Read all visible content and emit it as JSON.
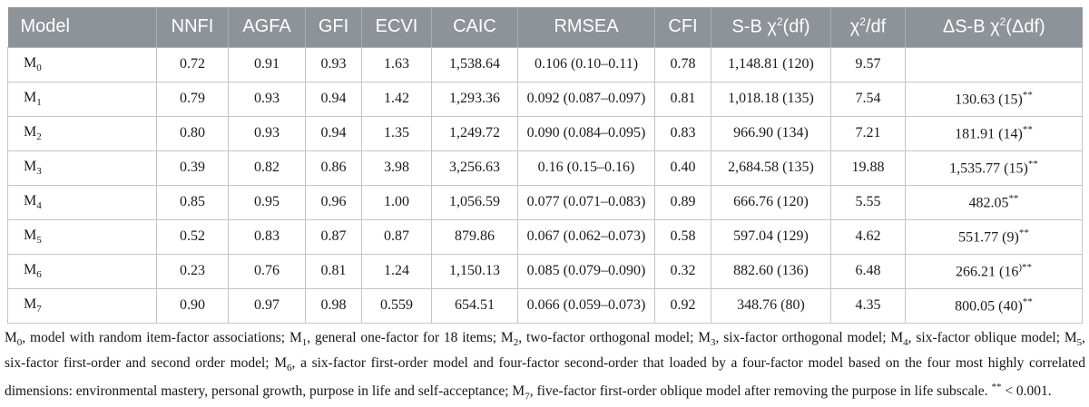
{
  "table": {
    "columns": [
      "Model",
      "NNFI",
      "AGFA",
      "GFI",
      "ECVI",
      "CAIC",
      "RMSEA",
      "CFI",
      "S-B χ^{2}(df)",
      "χ^{2}/df",
      "ΔS-B χ^{2}(Δdf)"
    ],
    "rows": [
      [
        "M_{0}",
        "0.72",
        "0.91",
        "0.93",
        "1.63",
        "1,538.64",
        "0.106 (0.10–0.11)",
        "0.78",
        "1,148.81 (120)",
        "9.57",
        ""
      ],
      [
        "M_{1}",
        "0.79",
        "0.93",
        "0.94",
        "1.42",
        "1,293.36",
        "0.092 (0.087–0.097)",
        "0.81",
        "1,018.18 (135)",
        "7.54",
        "130.63 (15)^{**}"
      ],
      [
        "M_{2}",
        "0.80",
        "0.93",
        "0.94",
        "1.35",
        "1,249.72",
        "0.090 (0.084–0.095)",
        "0.83",
        "966.90 (134)",
        "7.21",
        "181.91 (14)^{**}"
      ],
      [
        "M_{3}",
        "0.39",
        "0.82",
        "0.86",
        "3.98",
        "3,256.63",
        "0.16 (0.15–0.16)",
        "0.40",
        "2,684.58 (135)",
        "19.88",
        "1,535.77 (15)^{**}"
      ],
      [
        "M_{4}",
        "0.85",
        "0.95",
        "0.96",
        "1.00",
        "1,056.59",
        "0.077 (0.071–0.083)",
        "0.89",
        "666.76 (120)",
        "5.55",
        "482.05^{**}"
      ],
      [
        "M_{5}",
        "0.52",
        "0.83",
        "0.87",
        "0.87",
        "879.86",
        "0.067 (0.062–0.073)",
        "0.58",
        "597.04 (129)",
        "4.62",
        "551.77 (9)^{**}"
      ],
      [
        "M_{6}",
        "0.23",
        "0.76",
        "0.81",
        "1.24",
        "1,150.13",
        "0.085 (0.079–0.090)",
        "0.32",
        "882.60 (136)",
        "6.48",
        "266.21 (16^{)**}"
      ],
      [
        "M_{7}",
        "0.90",
        "0.97",
        "0.98",
        "0.559",
        "654.51",
        "0.066 (0.059–0.073)",
        "0.92",
        "348.76 (80)",
        "4.35",
        "800.05 (40)^{**}"
      ]
    ]
  },
  "footnote": "M_{0}, model with random item-factor associations; M_{1}, general one-factor for 18 items; M_{2}, two-factor orthogonal model; M_{3}, six-factor orthogonal model; M_{4}, six-factor oblique model; M_{5}, six-factor first-order and second order model; M_{6}, a six-factor first-order model and four-factor second-order that loaded by a four-factor model based on the four most highly correlated dimensions: environmental mastery, personal growth, purpose in life and self-acceptance; M_{7}, five-factor first-order oblique model after removing the purpose in life subscale. ^{**} < 0.001.",
  "colors": {
    "header_bg": "#8d9399",
    "header_text": "#ffffff",
    "body_border": "#c3c6c8",
    "text": "#1b1b1b"
  }
}
